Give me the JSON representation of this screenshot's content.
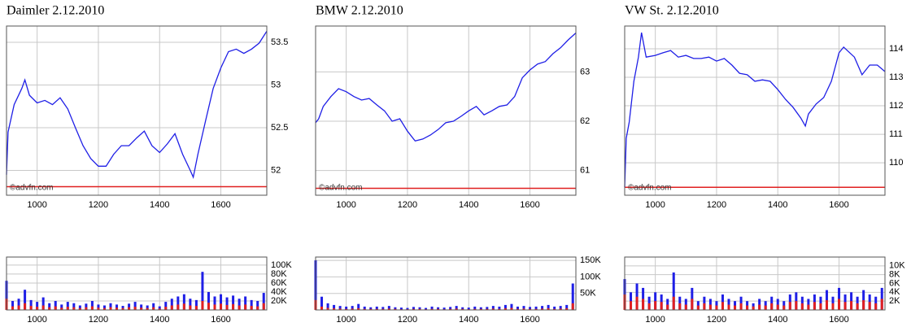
{
  "chart_data": [
    {
      "type": "line",
      "title": "Daimler 2.12.2010",
      "watermark": "©advfn.com",
      "color": "#1f1fe6",
      "reference_line": 51.81,
      "reference_color": "#e02020",
      "x": [
        9.0,
        9.05,
        9.25,
        9.5,
        9.6,
        9.75,
        10.0,
        10.25,
        10.5,
        10.75,
        11.0,
        11.25,
        11.5,
        11.75,
        12.0,
        12.25,
        12.5,
        12.75,
        13.0,
        13.25,
        13.5,
        13.75,
        14.0,
        14.25,
        14.5,
        14.75,
        15.0,
        15.1,
        15.25,
        15.5,
        15.75,
        16.0,
        16.25,
        16.5,
        16.75,
        17.0,
        17.25,
        17.5
      ],
      "values": [
        51.95,
        52.45,
        52.77,
        52.96,
        53.06,
        52.88,
        52.79,
        52.82,
        52.77,
        52.85,
        52.72,
        52.5,
        52.29,
        52.14,
        52.05,
        52.05,
        52.19,
        52.29,
        52.29,
        52.38,
        52.46,
        52.29,
        52.21,
        52.31,
        52.43,
        52.19,
        52.0,
        51.92,
        52.19,
        52.58,
        52.96,
        53.2,
        53.39,
        53.42,
        53.37,
        53.42,
        53.49,
        53.63
      ],
      "xlim": [
        9,
        17.5
      ],
      "xticks": [
        {
          "value": 10,
          "label": "1000"
        },
        {
          "value": 12,
          "label": "1200"
        },
        {
          "value": 14,
          "label": "1400"
        },
        {
          "value": 16,
          "label": "1600"
        }
      ],
      "ylim": [
        51.71,
        53.69
      ],
      "yticks": [
        52,
        52.5,
        53,
        53.5
      ],
      "grid": true
    },
    {
      "type": "bar",
      "series": [
        {
          "color": "#1f1fe6",
          "values": [
            65000,
            20000,
            25000,
            45000,
            22000,
            18000,
            28000,
            15000,
            20000,
            12000,
            18000,
            15000,
            10000,
            14000,
            20000,
            12000,
            10000,
            15000,
            12000,
            9000,
            14000,
            18000,
            12000,
            10000,
            15000,
            8000,
            18000,
            25000,
            30000,
            35000,
            25000,
            22000,
            85000,
            40000,
            30000,
            35000,
            28000,
            32000,
            25000,
            30000,
            22000,
            20000,
            38000
          ]
        },
        {
          "color": "#e02020",
          "values": [
            25000,
            8000,
            10000,
            15000,
            9000,
            7000,
            10000,
            6000,
            8000,
            5000,
            7000,
            6000,
            4000,
            6000,
            8000,
            5000,
            4000,
            6000,
            5000,
            4000,
            6000,
            7000,
            5000,
            4000,
            6000,
            3000,
            7000,
            10000,
            12000,
            14000,
            10000,
            9000,
            20000,
            16000,
            12000,
            14000,
            11000,
            13000,
            10000,
            12000,
            9000,
            8000,
            15000
          ]
        }
      ],
      "x": [
        9.0,
        9.2,
        9.4,
        9.6,
        9.8,
        10.0,
        10.2,
        10.4,
        10.6,
        10.8,
        11.0,
        11.2,
        11.4,
        11.6,
        11.8,
        12.0,
        12.2,
        12.4,
        12.6,
        12.8,
        13.0,
        13.2,
        13.4,
        13.6,
        13.8,
        14.0,
        14.2,
        14.4,
        14.6,
        14.8,
        15.0,
        15.2,
        15.4,
        15.6,
        15.8,
        16.0,
        16.2,
        16.4,
        16.6,
        16.8,
        17.0,
        17.2,
        17.4
      ],
      "xlim": [
        9,
        17.5
      ],
      "xticks": [
        {
          "value": 10,
          "label": "1000"
        },
        {
          "value": 12,
          "label": "1200"
        },
        {
          "value": 14,
          "label": "1400"
        },
        {
          "value": 16,
          "label": "1600"
        }
      ],
      "ylim": [
        0,
        118000
      ],
      "yticks": [
        {
          "value": 20000,
          "label": "20K"
        },
        {
          "value": 40000,
          "label": "40K"
        },
        {
          "value": 60000,
          "label": "60K"
        },
        {
          "value": 80000,
          "label": "80K"
        },
        {
          "value": 100000,
          "label": "100K"
        }
      ],
      "grid": true
    },
    {
      "type": "line",
      "title": "BMW 2.12.2010",
      "watermark": "©advfn.com",
      "color": "#1f1fe6",
      "reference_line": 60.64,
      "reference_color": "#e02020",
      "x": [
        9.0,
        9.1,
        9.25,
        9.5,
        9.75,
        10.0,
        10.25,
        10.5,
        10.75,
        11.0,
        11.25,
        11.5,
        11.75,
        12.0,
        12.25,
        12.5,
        12.75,
        13.0,
        13.25,
        13.5,
        13.75,
        14.0,
        14.25,
        14.5,
        14.75,
        15.0,
        15.25,
        15.5,
        15.75,
        16.0,
        16.25,
        16.5,
        16.75,
        17.0,
        17.25,
        17.5
      ],
      "values": [
        61.97,
        62.05,
        62.3,
        62.5,
        62.66,
        62.6,
        62.5,
        62.43,
        62.46,
        62.33,
        62.21,
        62.0,
        62.05,
        61.8,
        61.6,
        61.64,
        61.72,
        61.83,
        61.97,
        62.0,
        62.1,
        62.21,
        62.3,
        62.13,
        62.21,
        62.3,
        62.33,
        62.5,
        62.88,
        63.04,
        63.16,
        63.21,
        63.37,
        63.49,
        63.65,
        63.79
      ],
      "xlim": [
        9,
        17.5
      ],
      "xticks": [
        {
          "value": 10,
          "label": "1000"
        },
        {
          "value": 12,
          "label": "1200"
        },
        {
          "value": 14,
          "label": "1400"
        },
        {
          "value": 16,
          "label": "1600"
        }
      ],
      "ylim": [
        60.5,
        63.93
      ],
      "yticks": [
        61,
        62,
        63
      ],
      "grid": true
    },
    {
      "type": "bar",
      "series": [
        {
          "color": "#1f1fe6",
          "values": [
            150000,
            40000,
            20000,
            15000,
            12000,
            10000,
            12000,
            18000,
            10000,
            8000,
            10000,
            9000,
            12000,
            8000,
            7000,
            6000,
            9000,
            8000,
            6000,
            10000,
            8000,
            7000,
            9000,
            12000,
            8000,
            7000,
            10000,
            8000,
            9000,
            12000,
            10000,
            15000,
            18000,
            10000,
            12000,
            9000,
            10000,
            12000,
            15000,
            10000,
            12000,
            15000,
            80000
          ]
        },
        {
          "color": "#e02020",
          "values": [
            30000,
            10000,
            6000,
            5000,
            4000,
            3000,
            4000,
            5000,
            3000,
            3000,
            3000,
            3000,
            4000,
            3000,
            2000,
            2000,
            3000,
            3000,
            2000,
            3000,
            3000,
            2000,
            3000,
            4000,
            3000,
            2000,
            3000,
            3000,
            3000,
            4000,
            3000,
            5000,
            6000,
            3000,
            4000,
            3000,
            3000,
            4000,
            5000,
            3000,
            4000,
            5000,
            20000
          ]
        }
      ],
      "x": [
        9.0,
        9.2,
        9.4,
        9.6,
        9.8,
        10.0,
        10.2,
        10.4,
        10.6,
        10.8,
        11.0,
        11.2,
        11.4,
        11.6,
        11.8,
        12.0,
        12.2,
        12.4,
        12.6,
        12.8,
        13.0,
        13.2,
        13.4,
        13.6,
        13.8,
        14.0,
        14.2,
        14.4,
        14.6,
        14.8,
        15.0,
        15.2,
        15.4,
        15.6,
        15.8,
        16.0,
        16.2,
        16.4,
        16.6,
        16.8,
        17.0,
        17.2,
        17.4
      ],
      "xlim": [
        9,
        17.5
      ],
      "xticks": [
        {
          "value": 10,
          "label": "1000"
        },
        {
          "value": 12,
          "label": "1200"
        },
        {
          "value": 14,
          "label": "1400"
        },
        {
          "value": 16,
          "label": "1600"
        }
      ],
      "ylim": [
        0,
        160000
      ],
      "yticks": [
        {
          "value": 50000,
          "label": "50K"
        },
        {
          "value": 100000,
          "label": "100K"
        },
        {
          "value": 150000,
          "label": "150K"
        }
      ],
      "grid": true
    },
    {
      "type": "line",
      "title": "VW St. 2.12.2010",
      "watermark": "©advfn.com",
      "color": "#1f1fe6",
      "reference_line": 109.14,
      "reference_color": "#e02020",
      "x": [
        9.0,
        9.05,
        9.15,
        9.3,
        9.45,
        9.55,
        9.7,
        10.0,
        10.25,
        10.5,
        10.75,
        11.0,
        11.25,
        11.5,
        11.75,
        12.0,
        12.25,
        12.5,
        12.75,
        13.0,
        13.25,
        13.5,
        13.75,
        14.0,
        14.25,
        14.5,
        14.75,
        14.9,
        15.0,
        15.25,
        15.5,
        15.75,
        16.0,
        16.15,
        16.5,
        16.75,
        17.0,
        17.25,
        17.5
      ],
      "values": [
        109.14,
        110.86,
        111.43,
        112.86,
        113.71,
        114.57,
        113.71,
        113.77,
        113.86,
        113.94,
        113.71,
        113.77,
        113.66,
        113.66,
        113.71,
        113.57,
        113.66,
        113.43,
        113.14,
        113.09,
        112.86,
        112.91,
        112.86,
        112.57,
        112.23,
        111.94,
        111.57,
        111.29,
        111.71,
        112.06,
        112.29,
        112.86,
        113.86,
        114.06,
        113.71,
        113.09,
        113.43,
        113.43,
        113.2
      ],
      "xlim": [
        9,
        17.5
      ],
      "xticks": [
        {
          "value": 10,
          "label": "1000"
        },
        {
          "value": 12,
          "label": "1200"
        },
        {
          "value": 14,
          "label": "1400"
        },
        {
          "value": 16,
          "label": "1600"
        }
      ],
      "ylim": [
        108.86,
        114.8
      ],
      "yticks": [
        110,
        111,
        112,
        113,
        114
      ],
      "grid": true
    },
    {
      "type": "bar",
      "series": [
        {
          "color": "#1f1fe6",
          "values": [
            7000,
            4000,
            6000,
            5000,
            3000,
            4000,
            3500,
            2500,
            8500,
            3000,
            2500,
            5000,
            2000,
            3000,
            2500,
            2000,
            3500,
            2500,
            2000,
            3000,
            2000,
            1500,
            2500,
            2000,
            3000,
            2500,
            2000,
            3500,
            4000,
            3000,
            2500,
            3500,
            3000,
            4500,
            3000,
            5000,
            3500,
            4000,
            3000,
            4500,
            3500,
            3000,
            5000
          ]
        },
        {
          "color": "#e02020",
          "values": [
            3500,
            2000,
            3000,
            2500,
            1500,
            2000,
            1800,
            1200,
            3000,
            1500,
            1200,
            2500,
            1000,
            1500,
            1200,
            1000,
            1800,
            1200,
            1000,
            1500,
            1000,
            800,
            1200,
            1000,
            1500,
            1200,
            1000,
            1800,
            2000,
            1500,
            1200,
            1800,
            1500,
            2200,
            1500,
            2500,
            1800,
            2000,
            1500,
            2200,
            1800,
            1500,
            2500
          ]
        }
      ],
      "x": [
        9.0,
        9.2,
        9.4,
        9.6,
        9.8,
        10.0,
        10.2,
        10.4,
        10.6,
        10.8,
        11.0,
        11.2,
        11.4,
        11.6,
        11.8,
        12.0,
        12.2,
        12.4,
        12.6,
        12.8,
        13.0,
        13.2,
        13.4,
        13.6,
        13.8,
        14.0,
        14.2,
        14.4,
        14.6,
        14.8,
        15.0,
        15.2,
        15.4,
        15.6,
        15.8,
        16.0,
        16.2,
        16.4,
        16.6,
        16.8,
        17.0,
        17.2,
        17.4
      ],
      "xlim": [
        9,
        17.5
      ],
      "xticks": [
        {
          "value": 10,
          "label": "1000"
        },
        {
          "value": 12,
          "label": "1200"
        },
        {
          "value": 14,
          "label": "1400"
        },
        {
          "value": 16,
          "label": "1600"
        }
      ],
      "ylim": [
        0,
        12000
      ],
      "yticks": [
        {
          "value": 2000,
          "label": "2K"
        },
        {
          "value": 4000,
          "label": "4K"
        },
        {
          "value": 6000,
          "label": "6K"
        },
        {
          "value": 8000,
          "label": "8K"
        },
        {
          "value": 10000,
          "label": "10K"
        }
      ],
      "grid": true
    }
  ]
}
